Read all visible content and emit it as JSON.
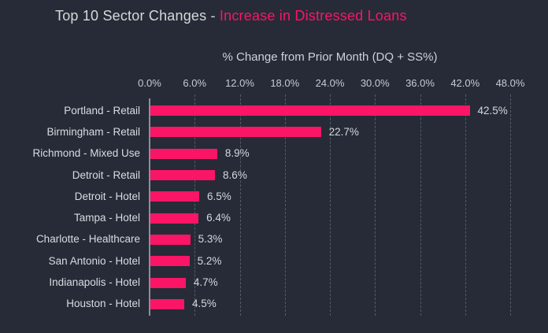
{
  "title": {
    "prefix": "Top 10 Sector Changes - ",
    "highlight": "Increase in Distressed Loans"
  },
  "axis_title": "% Change from Prior Month (DQ + SS%)",
  "colors": {
    "background": "#262b37",
    "bar": "#fb1566",
    "title_text": "#d8d8d8",
    "title_highlight": "#fb1566",
    "category_text": "#d9dce1",
    "value_text": "#d4d8de",
    "tick_text": "#c6cbd3",
    "gridline": "#565c66",
    "axis_line": "#8b9098"
  },
  "chart_data": {
    "type": "bar",
    "orientation": "horizontal",
    "title": "Top 10 Sector Changes - Increase in Distressed Loans",
    "xlabel": "% Change from Prior Month (DQ + SS%)",
    "categories": [
      "Portland - Retail",
      "Birmingham - Retail",
      "Richmond - Mixed Use",
      "Detroit - Retail",
      "Detroit - Hotel",
      "Tampa - Hotel",
      "Charlotte - Healthcare",
      "San Antonio - Hotel",
      "Indianapolis - Hotel",
      "Houston - Hotel"
    ],
    "values": [
      42.5,
      22.7,
      8.9,
      8.6,
      6.5,
      6.4,
      5.3,
      5.2,
      4.7,
      4.5
    ],
    "data_labels": [
      "42.5%",
      "22.7%",
      "8.9%",
      "8.6%",
      "6.5%",
      "6.4%",
      "5.3%",
      "5.2%",
      "4.7%",
      "4.5%"
    ],
    "x_ticks": [
      "0.0%",
      "6.0%",
      "12.0%",
      "18.0%",
      "24.0%",
      "30.0%",
      "36.0%",
      "42.0%",
      "48.0%"
    ],
    "x_tick_values": [
      0,
      6,
      12,
      18,
      24,
      30,
      36,
      42,
      48
    ],
    "xlim": [
      0,
      48
    ],
    "grid": "dashed-vertical",
    "legend": "none"
  }
}
